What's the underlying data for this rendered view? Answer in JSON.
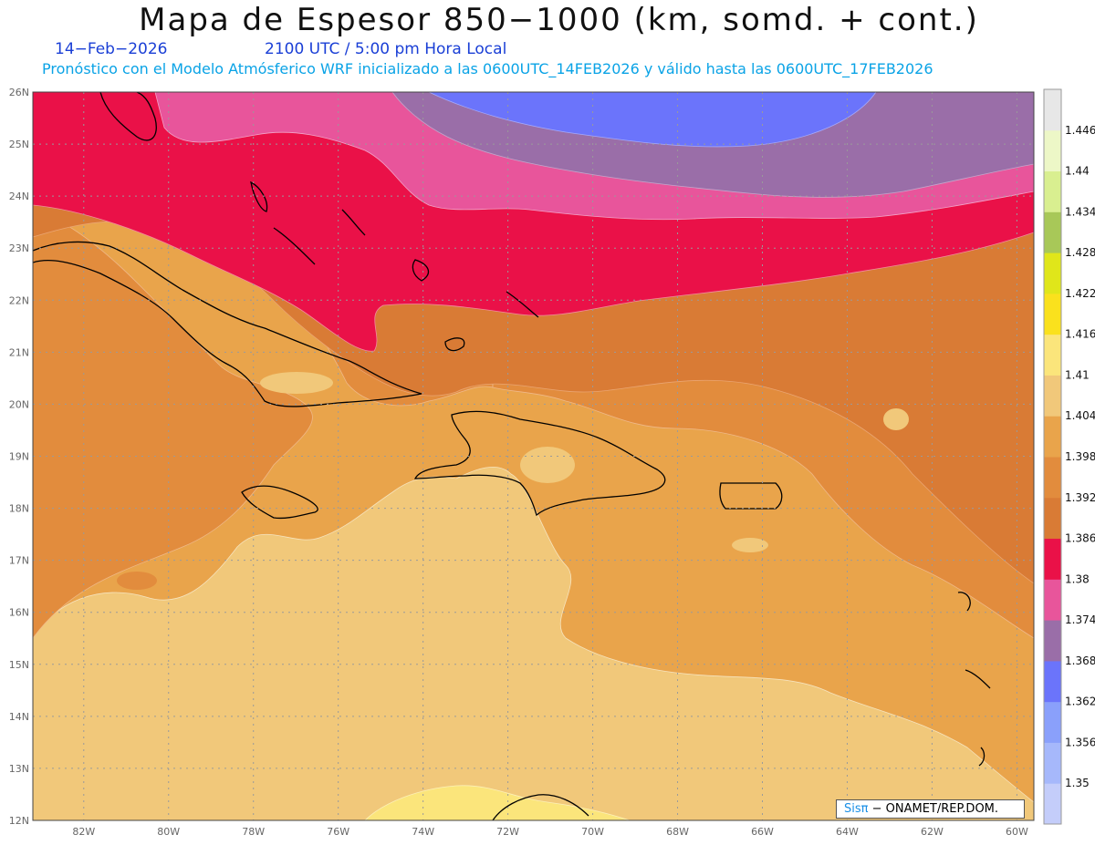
{
  "header": {
    "title": "Mapa de Espesor 850−1000 (km, somd. + cont.)",
    "date": "14−Feb−2026",
    "time": "2100 UTC / 5:00 pm Hora Local",
    "description": "Pronóstico con el Modelo Atmósferico WRF inicializado a las 0600UTC_14FEB2026 y válido hasta las  0600UTC_17FEB2026"
  },
  "map": {
    "lat_labels": [
      "26N",
      "25N",
      "24N",
      "23N",
      "22N",
      "21N",
      "20N",
      "19N",
      "18N",
      "17N",
      "16N",
      "15N",
      "14N",
      "13N",
      "12N"
    ],
    "lon_labels": [
      "82W",
      "80W",
      "78W",
      "76W",
      "74W",
      "72W",
      "70W",
      "68W",
      "66W",
      "64W",
      "62W",
      "60W"
    ],
    "lon_range": [
      -83.2,
      -59.6
    ],
    "lat_range": [
      12,
      26
    ],
    "grid": true
  },
  "colorbar": {
    "levels": [
      "1.35",
      "1.356",
      "1.362",
      "1.368",
      "1.374",
      "1.38",
      "1.386",
      "1.392",
      "1.398",
      "1.404",
      "1.41",
      "1.416",
      "1.422",
      "1.428",
      "1.434",
      "1.44",
      "1.446"
    ],
    "colors": [
      "#c4cdfa",
      "#a6b8fb",
      "#8aa0fb",
      "#6b74fb",
      "#9a6ea8",
      "#e8559b",
      "#ea1148",
      "#d97b35",
      "#e28c3d",
      "#e9a44b",
      "#f1c87a",
      "#fbe57b",
      "#fae11d",
      "#e0e61a",
      "#a8c858",
      "#d9ef90",
      "#edf7c7",
      "#e7e7e7"
    ]
  },
  "credit": {
    "sis": "Sisπ",
    "text": "−  ONAMET/REP.DOM."
  }
}
